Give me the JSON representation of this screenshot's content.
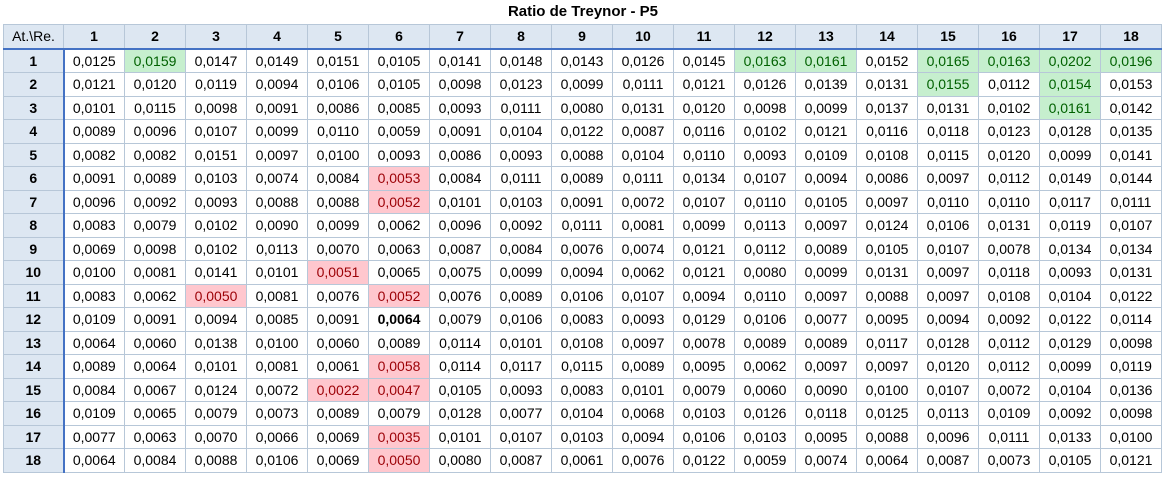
{
  "chart_data": {
    "type": "table",
    "title": "Ratio de Treynor - P5",
    "corner_label": "At.\\Re.",
    "columns": [
      "1",
      "2",
      "3",
      "4",
      "5",
      "6",
      "7",
      "8",
      "9",
      "10",
      "11",
      "12",
      "13",
      "14",
      "15",
      "16",
      "17",
      "18"
    ],
    "rows": [
      {
        "label": "1",
        "values": [
          "0,0125",
          "0,0159",
          "0,0147",
          "0,0149",
          "0,0151",
          "0,0105",
          "0,0141",
          "0,0148",
          "0,0143",
          "0,0126",
          "0,0145",
          "0,0163",
          "0,0161",
          "0,0152",
          "0,0165",
          "0,0163",
          "0,0202",
          "0,0196"
        ]
      },
      {
        "label": "2",
        "values": [
          "0,0121",
          "0,0120",
          "0,0119",
          "0,0094",
          "0,0106",
          "0,0105",
          "0,0098",
          "0,0123",
          "0,0099",
          "0,0111",
          "0,0121",
          "0,0126",
          "0,0139",
          "0,0131",
          "0,0155",
          "0,0112",
          "0,0154",
          "0,0153"
        ]
      },
      {
        "label": "3",
        "values": [
          "0,0101",
          "0,0115",
          "0,0098",
          "0,0091",
          "0,0086",
          "0,0085",
          "0,0093",
          "0,0111",
          "0,0080",
          "0,0131",
          "0,0120",
          "0,0098",
          "0,0099",
          "0,0137",
          "0,0131",
          "0,0102",
          "0,0161",
          "0,0142"
        ]
      },
      {
        "label": "4",
        "values": [
          "0,0089",
          "0,0096",
          "0,0107",
          "0,0099",
          "0,0110",
          "0,0059",
          "0,0091",
          "0,0104",
          "0,0122",
          "0,0087",
          "0,0116",
          "0,0102",
          "0,0121",
          "0,0116",
          "0,0118",
          "0,0123",
          "0,0128",
          "0,0135"
        ]
      },
      {
        "label": "5",
        "values": [
          "0,0082",
          "0,0082",
          "0,0151",
          "0,0097",
          "0,0100",
          "0,0093",
          "0,0086",
          "0,0093",
          "0,0088",
          "0,0104",
          "0,0110",
          "0,0093",
          "0,0109",
          "0,0108",
          "0,0115",
          "0,0120",
          "0,0099",
          "0,0141"
        ]
      },
      {
        "label": "6",
        "values": [
          "0,0091",
          "0,0089",
          "0,0103",
          "0,0074",
          "0,0084",
          "0,0053",
          "0,0084",
          "0,0111",
          "0,0089",
          "0,0111",
          "0,0134",
          "0,0107",
          "0,0094",
          "0,0086",
          "0,0097",
          "0,0112",
          "0,0149",
          "0,0144"
        ]
      },
      {
        "label": "7",
        "values": [
          "0,0096",
          "0,0092",
          "0,0093",
          "0,0088",
          "0,0088",
          "0,0052",
          "0,0101",
          "0,0103",
          "0,0091",
          "0,0072",
          "0,0107",
          "0,0110",
          "0,0105",
          "0,0097",
          "0,0110",
          "0,0110",
          "0,0117",
          "0,0111"
        ]
      },
      {
        "label": "8",
        "values": [
          "0,0083",
          "0,0079",
          "0,0102",
          "0,0090",
          "0,0099",
          "0,0062",
          "0,0096",
          "0,0092",
          "0,0111",
          "0,0081",
          "0,0099",
          "0,0113",
          "0,0097",
          "0,0124",
          "0,0106",
          "0,0131",
          "0,0119",
          "0,0107"
        ]
      },
      {
        "label": "9",
        "values": [
          "0,0069",
          "0,0098",
          "0,0102",
          "0,0113",
          "0,0070",
          "0,0063",
          "0,0087",
          "0,0084",
          "0,0076",
          "0,0074",
          "0,0121",
          "0,0112",
          "0,0089",
          "0,0105",
          "0,0107",
          "0,0078",
          "0,0134",
          "0,0134"
        ]
      },
      {
        "label": "10",
        "values": [
          "0,0100",
          "0,0081",
          "0,0141",
          "0,0101",
          "0,0051",
          "0,0065",
          "0,0075",
          "0,0099",
          "0,0094",
          "0,0062",
          "0,0121",
          "0,0080",
          "0,0099",
          "0,0131",
          "0,0097",
          "0,0118",
          "0,0093",
          "0,0131"
        ]
      },
      {
        "label": "11",
        "values": [
          "0,0083",
          "0,0062",
          "0,0050",
          "0,0081",
          "0,0076",
          "0,0052",
          "0,0076",
          "0,0089",
          "0,0106",
          "0,0107",
          "0,0094",
          "0,0110",
          "0,0097",
          "0,0088",
          "0,0097",
          "0,0108",
          "0,0104",
          "0,0122"
        ]
      },
      {
        "label": "12",
        "values": [
          "0,0109",
          "0,0091",
          "0,0094",
          "0,0085",
          "0,0091",
          "0,0064",
          "0,0079",
          "0,0106",
          "0,0083",
          "0,0093",
          "0,0129",
          "0,0106",
          "0,0077",
          "0,0095",
          "0,0094",
          "0,0092",
          "0,0122",
          "0,0114"
        ]
      },
      {
        "label": "13",
        "values": [
          "0,0064",
          "0,0060",
          "0,0138",
          "0,0100",
          "0,0060",
          "0,0089",
          "0,0114",
          "0,0101",
          "0,0108",
          "0,0097",
          "0,0078",
          "0,0089",
          "0,0089",
          "0,0117",
          "0,0128",
          "0,0112",
          "0,0129",
          "0,0098"
        ]
      },
      {
        "label": "14",
        "values": [
          "0,0089",
          "0,0064",
          "0,0101",
          "0,0081",
          "0,0061",
          "0,0058",
          "0,0114",
          "0,0117",
          "0,0115",
          "0,0089",
          "0,0095",
          "0,0062",
          "0,0097",
          "0,0097",
          "0,0120",
          "0,0112",
          "0,0099",
          "0,0119"
        ]
      },
      {
        "label": "15",
        "values": [
          "0,0084",
          "0,0067",
          "0,0124",
          "0,0072",
          "0,0022",
          "0,0047",
          "0,0105",
          "0,0093",
          "0,0083",
          "0,0101",
          "0,0079",
          "0,0060",
          "0,0090",
          "0,0100",
          "0,0107",
          "0,0072",
          "0,0104",
          "0,0136"
        ]
      },
      {
        "label": "16",
        "values": [
          "0,0109",
          "0,0065",
          "0,0079",
          "0,0073",
          "0,0089",
          "0,0079",
          "0,0128",
          "0,0077",
          "0,0104",
          "0,0068",
          "0,0103",
          "0,0126",
          "0,0118",
          "0,0125",
          "0,0113",
          "0,0109",
          "0,0092",
          "0,0098"
        ]
      },
      {
        "label": "17",
        "values": [
          "0,0077",
          "0,0063",
          "0,0070",
          "0,0066",
          "0,0069",
          "0,0035",
          "0,0101",
          "0,0107",
          "0,0103",
          "0,0094",
          "0,0106",
          "0,0103",
          "0,0095",
          "0,0088",
          "0,0096",
          "0,0111",
          "0,0133",
          "0,0100"
        ]
      },
      {
        "label": "18",
        "values": [
          "0,0064",
          "0,0084",
          "0,0088",
          "0,0106",
          "0,0069",
          "0,0050",
          "0,0080",
          "0,0087",
          "0,0061",
          "0,0076",
          "0,0122",
          "0,0059",
          "0,0074",
          "0,0064",
          "0,0087",
          "0,0073",
          "0,0105",
          "0,0121"
        ]
      }
    ],
    "highlight_high": [
      [
        0,
        1
      ],
      [
        0,
        11
      ],
      [
        0,
        12
      ],
      [
        0,
        14
      ],
      [
        0,
        15
      ],
      [
        0,
        16
      ],
      [
        0,
        17
      ],
      [
        1,
        14
      ],
      [
        1,
        16
      ],
      [
        2,
        16
      ]
    ],
    "highlight_low": [
      [
        5,
        5
      ],
      [
        6,
        5
      ],
      [
        9,
        4
      ],
      [
        10,
        2
      ],
      [
        10,
        5
      ],
      [
        13,
        5
      ],
      [
        14,
        4
      ],
      [
        14,
        5
      ],
      [
        16,
        5
      ],
      [
        17,
        5
      ]
    ],
    "bold_cells": [
      [
        11,
        5
      ]
    ],
    "colors": {
      "header_bg": "#dde7f2",
      "header_rule": "#4472c4",
      "grid_line": "#b7c7d8",
      "high_fill": "#c6efce",
      "high_text": "#006100",
      "low_fill": "#ffc7ce",
      "low_text": "#9c0006"
    }
  }
}
